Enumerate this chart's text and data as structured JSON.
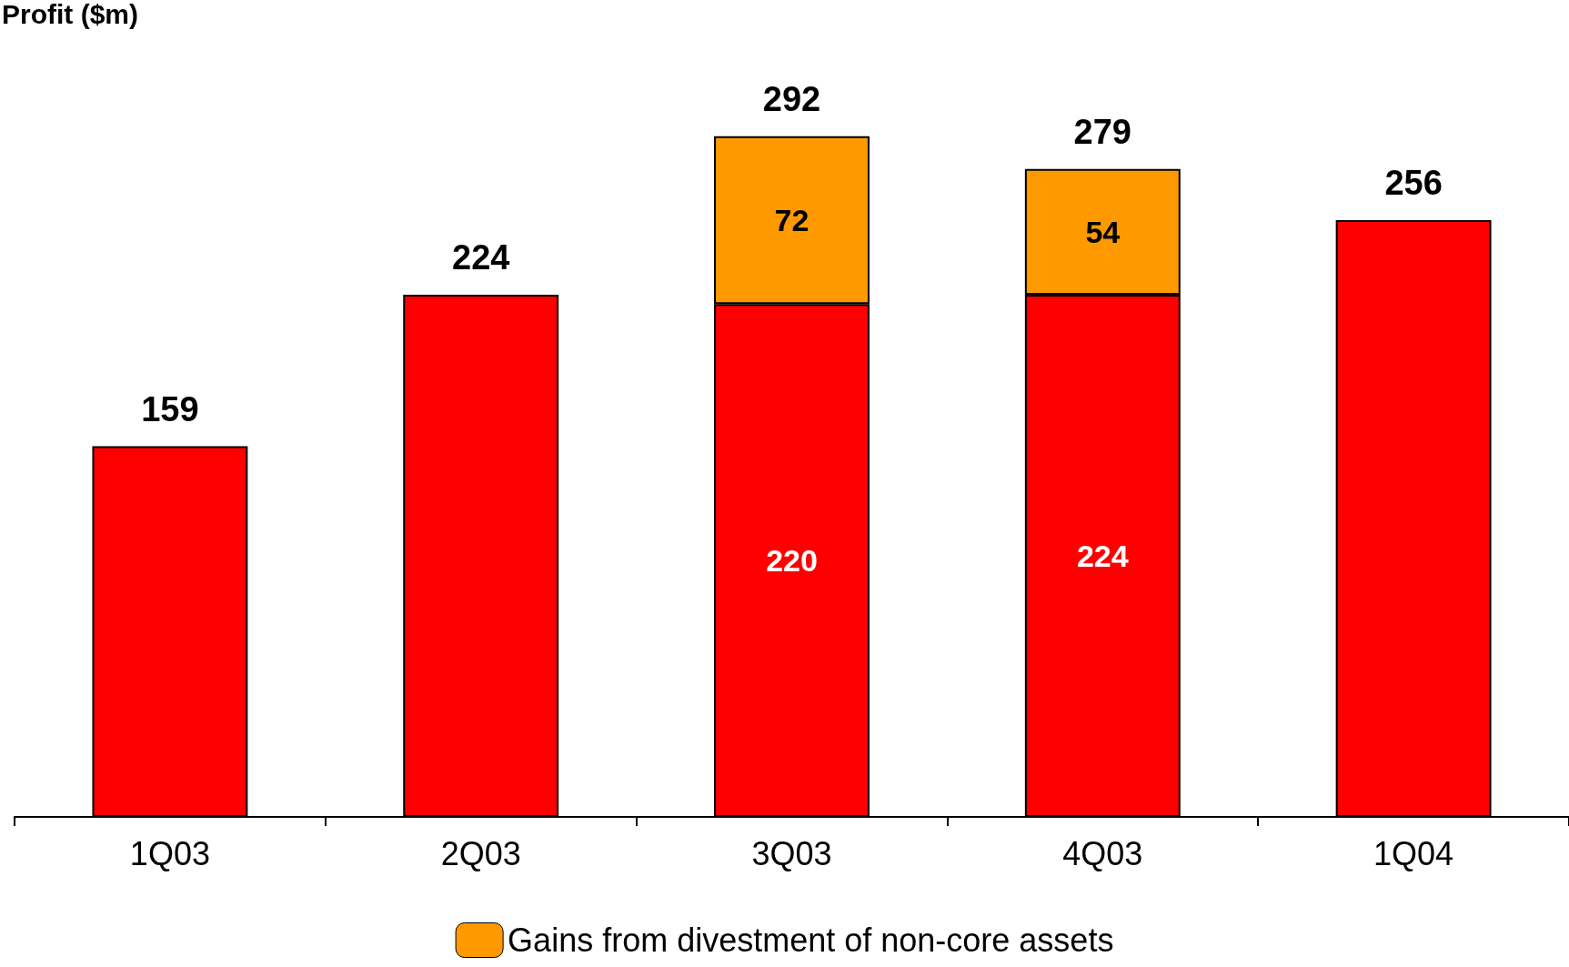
{
  "chart_data": {
    "type": "bar",
    "ylabel": "Profit ($m)",
    "stacked": true,
    "legend": "bottom",
    "categories": [
      "1Q03",
      "2Q03",
      "3Q03",
      "4Q03",
      "1Q04"
    ],
    "series": [
      {
        "color": "#ff0000",
        "values": [
          159,
          224,
          220,
          224,
          256
        ],
        "value_labels": [
          null,
          null,
          "220",
          "224",
          null
        ]
      },
      {
        "name": "Gains from divestment of non-core assets",
        "color": "#ff9900",
        "values": [
          null,
          null,
          72,
          54,
          null
        ],
        "value_labels": [
          null,
          null,
          "72",
          "54",
          null
        ]
      }
    ],
    "totals": [
      "159",
      "224",
      "292",
      "279",
      "256"
    ]
  }
}
